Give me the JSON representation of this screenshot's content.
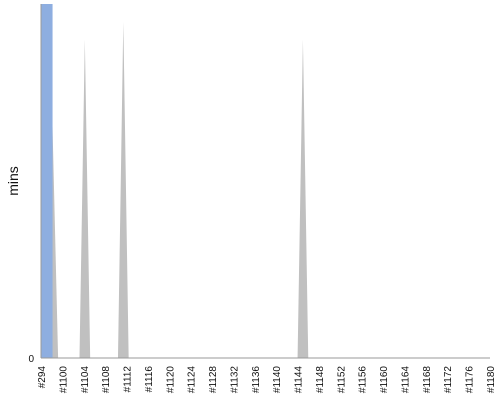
{
  "chart_data": {
    "type": "area",
    "ylabel": "mins",
    "xlabel": "",
    "y_tick_labels": [
      "0"
    ],
    "ylim": [
      0,
      100
    ],
    "grid": false,
    "categories": [
      "#294",
      "#1100",
      "#1104",
      "#1108",
      "#1112",
      "#1116",
      "#1120",
      "#1124",
      "#1128",
      "#1132",
      "#1136",
      "#1140",
      "#1144",
      "#1148",
      "#1152",
      "#1156",
      "#1160",
      "#1164",
      "#1168",
      "#1172",
      "#1176",
      "#1180"
    ],
    "points": [
      {
        "x": 0.0,
        "y": 100
      },
      {
        "x": 0.4,
        "y": 100
      },
      {
        "x": 0.8,
        "y": 0
      },
      {
        "x": 1.8,
        "y": 0
      },
      {
        "x": 2.05,
        "y": 90
      },
      {
        "x": 2.3,
        "y": 0
      },
      {
        "x": 3.6,
        "y": 0
      },
      {
        "x": 3.85,
        "y": 95
      },
      {
        "x": 4.1,
        "y": 0
      },
      {
        "x": 12.0,
        "y": 0
      },
      {
        "x": 12.25,
        "y": 90
      },
      {
        "x": 12.5,
        "y": 0
      },
      {
        "x": 21.0,
        "y": 0
      }
    ],
    "colors": {
      "area": "#c0c0c0",
      "highlight": "#8eaee0",
      "axis": "#999999"
    }
  }
}
